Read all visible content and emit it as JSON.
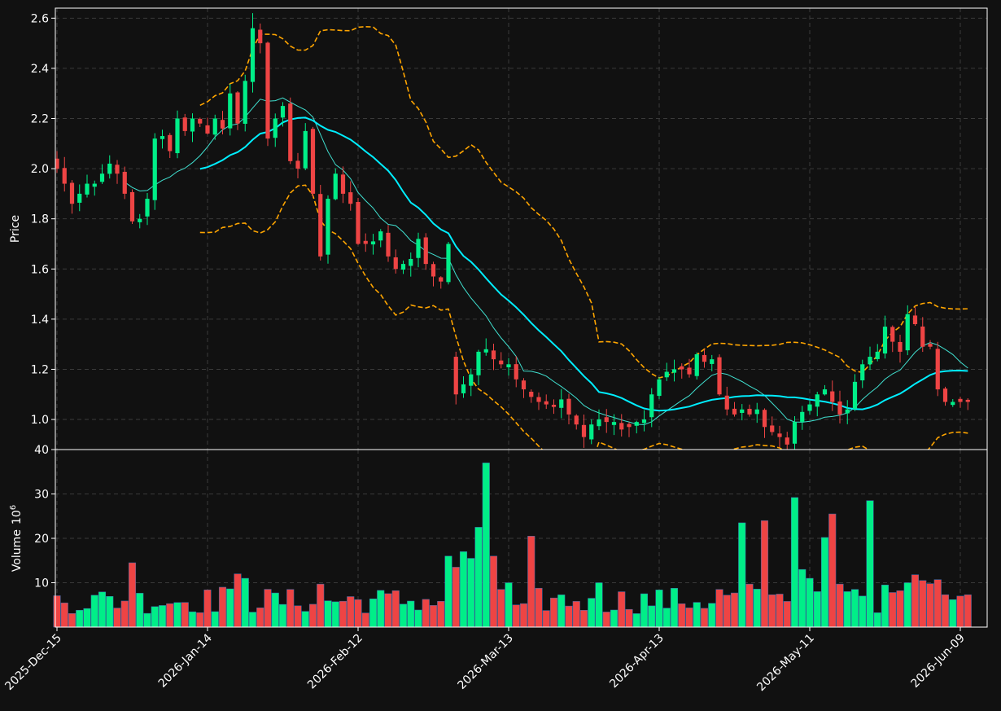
{
  "theme": {
    "background": "#111111",
    "axes": "#ffffff",
    "grid": "#3a3a3a",
    "up_color": "#00ee88",
    "down_color": "#ee4444",
    "sma_fast_color": "#40e0d0",
    "sma_slow_color": "#00eeff",
    "band_color": "#ffa500"
  },
  "chart_data": {
    "type": "candlestick",
    "price_panel": {
      "ylabel": "Price",
      "ylim": [
        0.88,
        2.64
      ],
      "yticks": [
        1.0,
        1.2,
        1.4,
        1.6,
        1.8,
        2.0,
        2.2,
        2.4,
        2.6
      ],
      "ytick_labels": [
        "1.0",
        "1.2",
        "1.4",
        "1.6",
        "1.8",
        "2.0",
        "2.2",
        "2.4",
        "2.6"
      ],
      "grid": true
    },
    "volume_panel": {
      "ylabel": "Volume",
      "yunit": "10",
      "yunit_exp": "6",
      "ylim": [
        0,
        40
      ],
      "yticks": [
        10,
        20,
        30,
        40
      ],
      "ytick_labels": [
        "10",
        "20",
        "30",
        "40"
      ],
      "grid": true
    },
    "x_ticks": [
      {
        "index": 0,
        "label": "2025-Dec-15"
      },
      {
        "index": 20,
        "label": "2026-Jan-14"
      },
      {
        "index": 40,
        "label": "2026-Feb-12"
      },
      {
        "index": 60,
        "label": "2026-Mar-13"
      },
      {
        "index": 80,
        "label": "2026-Apr-13"
      },
      {
        "index": 100,
        "label": "2026-May-11"
      },
      {
        "index": 120,
        "label": "2026-Jun-09"
      }
    ],
    "close": [
      2.0,
      1.94,
      1.86,
      1.9,
      1.94,
      1.94,
      1.98,
      2.02,
      1.98,
      1.9,
      1.79,
      1.8,
      1.88,
      2.12,
      2.13,
      2.07,
      2.2,
      2.15,
      2.2,
      2.18,
      2.14,
      2.2,
      2.16,
      2.3,
      2.18,
      2.35,
      2.56,
      2.5,
      2.12,
      2.2,
      2.25,
      2.03,
      2.0,
      2.15,
      1.9,
      1.65,
      1.88,
      1.98,
      1.9,
      1.86,
      1.7,
      1.7,
      1.71,
      1.75,
      1.65,
      1.6,
      1.62,
      1.64,
      1.72,
      1.62,
      1.57,
      1.55,
      1.7,
      1.1,
      1.14,
      1.18,
      1.27,
      1.28,
      1.24,
      1.22,
      1.22,
      1.16,
      1.12,
      1.09,
      1.07,
      1.06,
      1.05,
      1.08,
      1.02,
      0.98,
      0.93,
      0.98,
      1.0,
      0.99,
      0.99,
      0.96,
      0.97,
      0.99,
      1.0,
      1.1,
      1.16,
      1.19,
      1.2,
      1.2,
      1.18,
      1.26,
      1.23,
      1.24,
      1.1,
      1.04,
      1.02,
      1.04,
      1.02,
      1.04,
      0.97,
      0.95,
      0.93,
      0.9,
      0.99,
      1.03,
      1.06,
      1.1,
      1.12,
      1.07,
      1.02,
      1.04,
      1.15,
      1.22,
      1.25,
      1.27,
      1.37,
      1.31,
      1.27,
      1.42,
      1.38,
      1.29,
      1.29,
      1.12,
      1.07,
      1.07,
      1.07,
      1.07
    ]
  }
}
